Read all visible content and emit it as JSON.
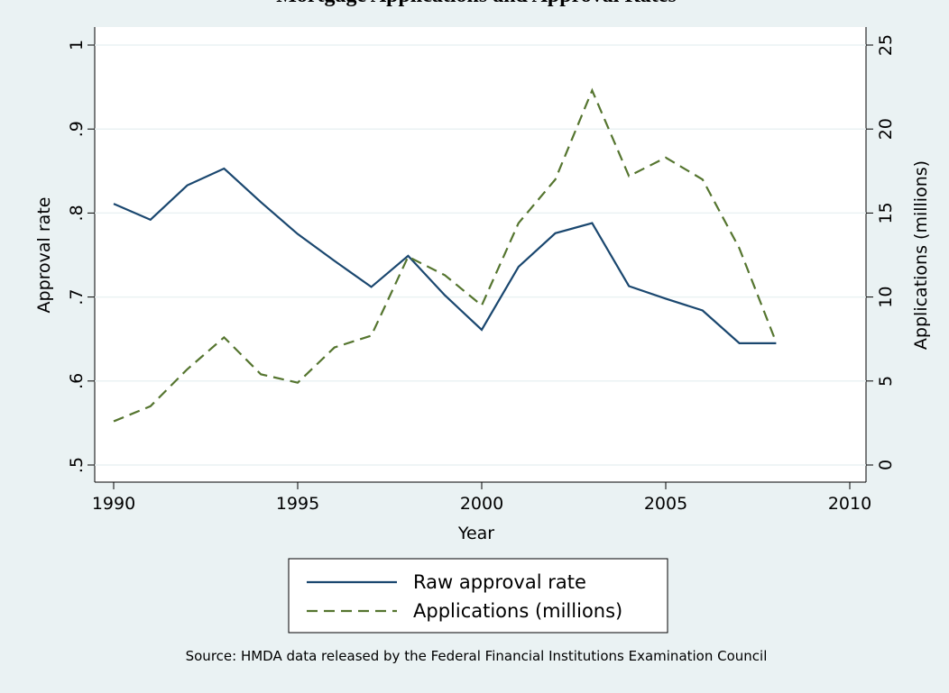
{
  "chart_data": {
    "type": "line",
    "title": "Mortgage Applications and Approval Rates",
    "x_label": "Year",
    "y_label": "Approval rate",
    "y2_label": "Applications (millions)",
    "source": "Source: HMDA data released by the Federal Financial Institutions Examination Council",
    "x": [
      1990,
      1991,
      1992,
      1993,
      1994,
      1995,
      1996,
      1997,
      1998,
      1999,
      2000,
      2001,
      2002,
      2003,
      2004,
      2005,
      2006,
      2007,
      2008
    ],
    "series": [
      {
        "name": "Raw approval rate",
        "color": "#1a476f",
        "dash": "solid",
        "values": [
          0.811,
          0.792,
          0.833,
          0.853,
          0.813,
          0.775,
          0.743,
          0.712,
          0.749,
          0.702,
          0.661,
          0.736,
          0.776,
          0.788,
          0.713,
          0.698,
          0.684,
          0.645,
          0.645
        ]
      },
      {
        "name": "Applications (millions)",
        "color": "#55752f",
        "dash": "dashed",
        "axis": "y2",
        "values": [
          2.6,
          3.5,
          5.7,
          7.6,
          5.4,
          4.9,
          7.0,
          7.7,
          12.4,
          11.3,
          9.5,
          14.4,
          17.0,
          22.3,
          17.2,
          18.3,
          17.0,
          12.9,
          7.3
        ]
      }
    ],
    "xlim": [
      1990,
      2010
    ],
    "xticks": [
      1990,
      1995,
      2000,
      2005,
      2010
    ],
    "ylim": [
      0.5,
      1
    ],
    "yticks": [
      {
        "value": 0.5,
        "label": ".5"
      },
      {
        "value": 0.6,
        "label": ".6"
      },
      {
        "value": 0.7,
        "label": ".7"
      },
      {
        "value": 0.8,
        "label": ".8"
      },
      {
        "value": 0.9,
        "label": ".9"
      },
      1
    ],
    "y2lim": [
      0,
      25
    ],
    "y2ticks": [
      0,
      5,
      10,
      15,
      20,
      25
    ],
    "grid": true,
    "legend": "bottom"
  }
}
